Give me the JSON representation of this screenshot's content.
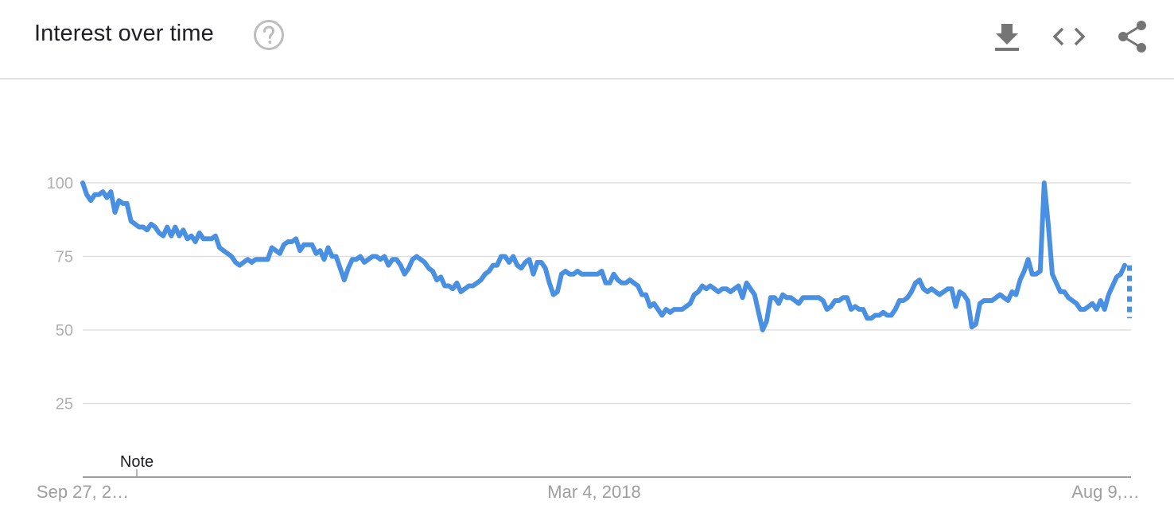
{
  "header": {
    "title": "Interest over time",
    "help_icon": "help-circle-icon",
    "actions": [
      {
        "name": "download-button",
        "icon": "download-icon"
      },
      {
        "name": "embed-button",
        "icon": "code-icon"
      },
      {
        "name": "share-button",
        "icon": "share-icon"
      }
    ]
  },
  "colors": {
    "line": "#4a90e2",
    "grid": "#e0e0e0",
    "axis": "#9e9e9e",
    "icon": "#757575"
  },
  "chart_data": {
    "type": "line",
    "title": "",
    "xlabel": "",
    "ylabel": "",
    "ylim": [
      0,
      100
    ],
    "y_ticks": [
      25,
      50,
      75,
      100
    ],
    "y_tick_labels": [
      "25",
      "50",
      "75",
      "100"
    ],
    "x_tick_labels": [
      "Sep 27, 2…",
      "Mar 4, 2018",
      "Aug 9,…"
    ],
    "annotation": "Note",
    "grid": true,
    "series": [
      {
        "values": [
          100,
          96,
          94,
          96,
          96,
          97,
          95,
          97,
          90,
          94,
          93,
          93,
          87,
          86,
          85,
          85,
          84,
          86,
          85,
          83,
          82,
          85,
          82,
          85,
          82,
          84,
          81,
          82,
          80,
          83,
          81,
          81,
          81,
          82,
          78,
          77,
          76,
          75,
          73,
          72,
          73,
          74,
          73,
          74,
          74,
          74,
          74,
          78,
          77,
          76,
          79,
          80,
          80,
          81,
          77,
          79,
          79,
          79,
          76,
          77,
          74,
          78,
          75,
          75,
          71,
          67,
          71,
          74,
          74,
          75,
          73,
          74,
          75,
          75,
          74,
          75,
          72,
          74,
          74,
          72,
          69,
          71,
          74,
          75,
          74,
          73,
          71,
          70,
          67,
          68,
          65,
          65,
          64,
          66,
          63,
          64,
          65,
          65,
          66,
          67,
          69,
          70,
          72,
          72,
          75,
          75,
          73,
          75,
          72,
          71,
          73,
          74,
          69,
          73,
          73,
          71,
          66,
          62,
          63,
          69,
          70,
          69,
          69,
          70,
          69,
          69,
          69,
          69,
          69,
          70,
          66,
          66,
          69,
          67,
          66,
          66,
          67,
          66,
          65,
          62,
          62,
          58,
          59,
          57,
          55,
          57,
          56,
          57,
          57,
          57,
          58,
          59,
          62,
          63,
          65,
          64,
          65,
          64,
          63,
          64,
          64,
          63,
          64,
          65,
          61,
          66,
          64,
          62,
          56,
          50,
          53,
          61,
          61,
          59,
          62,
          61,
          61,
          60,
          59,
          61,
          61,
          61,
          61,
          61,
          60,
          57,
          58,
          60,
          60,
          61,
          61,
          57,
          58,
          57,
          57,
          54,
          54,
          55,
          55,
          56,
          55,
          55,
          57,
          60,
          60,
          61,
          63,
          66,
          67,
          64,
          63,
          64,
          63,
          62,
          63,
          64,
          64,
          58,
          63,
          62,
          60,
          51,
          52,
          59,
          60,
          60,
          60,
          61,
          62,
          61,
          60,
          63,
          62,
          67,
          70,
          74,
          69,
          69,
          70,
          100,
          86,
          69,
          66,
          63,
          63,
          61,
          60,
          59,
          57,
          57,
          58,
          59,
          57,
          60,
          57,
          62,
          65,
          68,
          69,
          72
        ],
        "partial_values": [
          72,
          54
        ]
      }
    ]
  }
}
